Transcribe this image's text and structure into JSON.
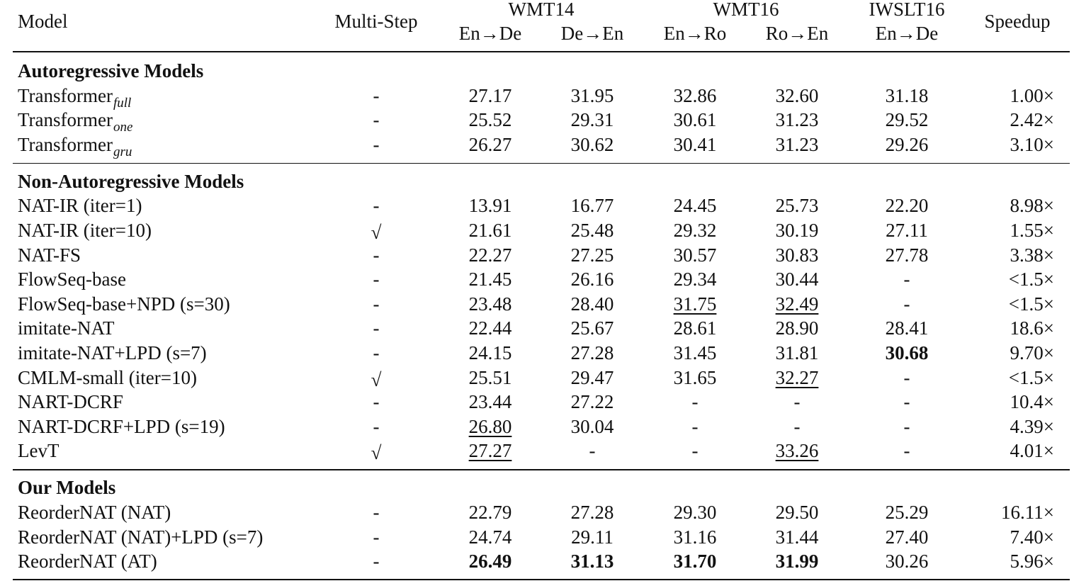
{
  "table": {
    "header": {
      "model": "Model",
      "multi_step": "Multi-Step",
      "groups": [
        "WMT14",
        "WMT16",
        "IWSLT16"
      ],
      "pairs": [
        "En→De",
        "De→En",
        "En→Ro",
        "Ro→En",
        "En→De"
      ],
      "speedup": "Speedup"
    },
    "sections": [
      {
        "title": "Autoregressive Models",
        "rows": [
          {
            "model": {
              "text": "Transformer",
              "sub": "full"
            },
            "cells": [
              "-",
              "27.17",
              "31.95",
              "32.86",
              "32.60",
              "31.18",
              "1.00×"
            ]
          },
          {
            "model": {
              "text": "Transformer",
              "sub": "one"
            },
            "cells": [
              "-",
              "25.52",
              "29.31",
              "30.61",
              "31.23",
              "29.52",
              "2.42×"
            ]
          },
          {
            "model": {
              "text": "Transformer",
              "sub": "gru"
            },
            "cells": [
              "-",
              "26.27",
              "30.62",
              "30.41",
              "31.23",
              "29.26",
              "3.10×"
            ]
          }
        ]
      },
      {
        "title": "Non-Autoregressive Models",
        "rows": [
          {
            "model": "NAT-IR (iter=1)",
            "cells": [
              "-",
              "13.91",
              "16.77",
              "24.45",
              "25.73",
              "22.20",
              "8.98×"
            ]
          },
          {
            "model": "NAT-IR (iter=10)",
            "cells": [
              "√",
              "21.61",
              "25.48",
              "29.32",
              "30.19",
              "27.11",
              "1.55×"
            ]
          },
          {
            "model": "NAT-FS",
            "cells": [
              "-",
              "22.27",
              "27.25",
              "30.57",
              "30.83",
              "27.78",
              "3.38×"
            ]
          },
          {
            "model": "FlowSeq-base",
            "cells": [
              "-",
              "21.45",
              "26.16",
              "29.34",
              "30.44",
              "-",
              "<1.5×"
            ]
          },
          {
            "model": "FlowSeq-base+NPD (s=30)",
            "cells": [
              "-",
              "23.48",
              "28.40",
              {
                "text": "31.75",
                "underline": true
              },
              {
                "text": "32.49",
                "underline": true
              },
              "-",
              "<1.5×"
            ]
          },
          {
            "model": "imitate-NAT",
            "cells": [
              "-",
              "22.44",
              "25.67",
              "28.61",
              "28.90",
              "28.41",
              "18.6×"
            ]
          },
          {
            "model": "imitate-NAT+LPD (s=7)",
            "cells": [
              "-",
              "24.15",
              "27.28",
              "31.45",
              "31.81",
              {
                "text": "30.68",
                "bold": true
              },
              "9.70×"
            ]
          },
          {
            "model": "CMLM-small (iter=10)",
            "cells": [
              "√",
              "25.51",
              "29.47",
              "31.65",
              {
                "text": "32.27",
                "underline": true
              },
              "-",
              "<1.5×"
            ]
          },
          {
            "model": "NART-DCRF",
            "cells": [
              "-",
              "23.44",
              "27.22",
              "-",
              "-",
              "-",
              "10.4×"
            ]
          },
          {
            "model": "NART-DCRF+LPD (s=19)",
            "cells": [
              "-",
              {
                "text": "26.80",
                "underline": true
              },
              "30.04",
              "-",
              "-",
              "-",
              "4.39×"
            ]
          },
          {
            "model": "LevT",
            "cells": [
              "√",
              {
                "text": "27.27",
                "underline": true
              },
              "-",
              "-",
              {
                "text": "33.26",
                "underline": true
              },
              "-",
              "4.01×"
            ]
          }
        ]
      },
      {
        "title": "Our Models",
        "rows": [
          {
            "model": "ReorderNAT (NAT)",
            "cells": [
              "-",
              "22.79",
              "27.28",
              "29.30",
              "29.50",
              "25.29",
              "16.11×"
            ]
          },
          {
            "model": "ReorderNAT (NAT)+LPD (s=7)",
            "cells": [
              "-",
              "24.74",
              "29.11",
              "31.16",
              "31.44",
              "27.40",
              "7.40×"
            ]
          },
          {
            "model": "ReorderNAT (AT)",
            "cells": [
              "-",
              {
                "text": "26.49",
                "bold": true
              },
              {
                "text": "31.13",
                "bold": true
              },
              {
                "text": "31.70",
                "bold": true
              },
              {
                "text": "31.99",
                "bold": true
              },
              "30.26",
              "5.96×"
            ]
          }
        ]
      }
    ]
  }
}
